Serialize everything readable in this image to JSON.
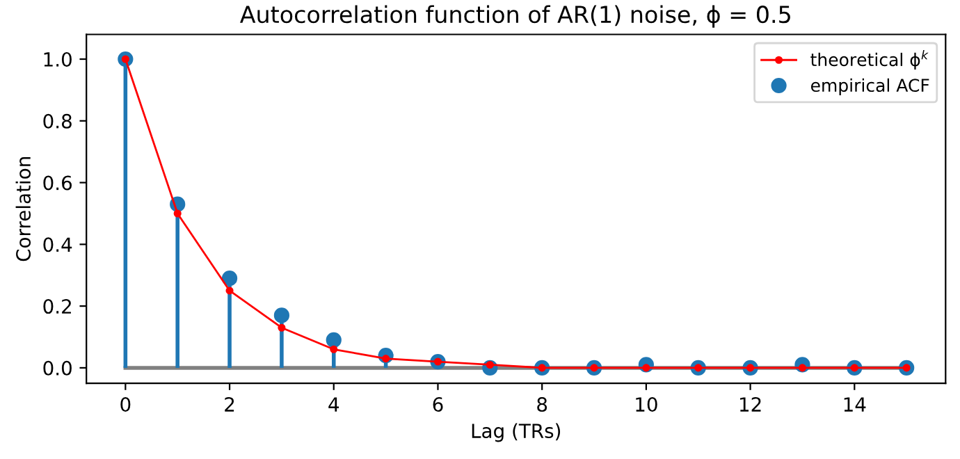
{
  "chart_data": {
    "type": "line",
    "title": "Autocorrelation function of AR(1) noise, ϕ = 0.5",
    "xlabel": "Lag (TRs)",
    "ylabel": "Correlation",
    "x": [
      0,
      1,
      2,
      3,
      4,
      5,
      6,
      7,
      8,
      9,
      10,
      11,
      12,
      13,
      14,
      15
    ],
    "series": [
      {
        "name": "theoretical ϕ$^{k}$",
        "color": "#ff0000",
        "marker": "circle",
        "values": [
          1.0,
          0.5,
          0.25,
          0.13,
          0.06,
          0.03,
          0.02,
          0.01,
          0.0,
          0.0,
          0.0,
          0.0,
          0.0,
          0.0,
          0.0,
          0.0
        ]
      },
      {
        "name": "empirical ACF",
        "type": "lollipop",
        "color": "#1f77b4",
        "values": [
          1.0,
          0.53,
          0.29,
          0.17,
          0.09,
          0.04,
          0.02,
          0.0,
          0.0,
          0.0,
          0.01,
          0.0,
          0.0,
          0.01,
          0.0,
          0.0
        ]
      }
    ],
    "ref_lines": [
      {
        "axis": "y",
        "value": 0,
        "color": "#808080"
      }
    ],
    "xlim": [
      -0.75,
      15.75
    ],
    "ylim": [
      -0.05,
      1.08
    ],
    "xticks": [
      0,
      2,
      4,
      6,
      8,
      10,
      12,
      14
    ],
    "yticks": [
      {
        "value": 0,
        "label": "0.0"
      },
      {
        "value": 0.2,
        "label": "0.2"
      },
      {
        "value": 0.4,
        "label": "0.4"
      },
      {
        "value": 0.6,
        "label": "0.6"
      },
      {
        "value": 0.8,
        "label": "0.8"
      },
      {
        "value": 1.0,
        "label": "1.0"
      }
    ],
    "grid": false,
    "legend": "top right"
  }
}
